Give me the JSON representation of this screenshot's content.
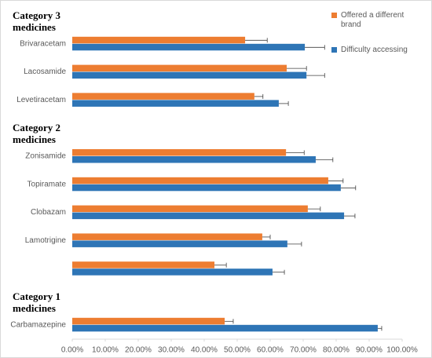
{
  "chart_data": {
    "type": "bar",
    "orientation": "horizontal",
    "categories": [
      "Category 3 medicines",
      "Brivaracetam",
      "Lacosamide",
      "Levetiracetam",
      "Category 2 medicines",
      "Zonisamide",
      "Topiramate",
      "Clobazam",
      "Lamotrigine",
      null,
      "Category 1 medicines",
      "Carbamazepine"
    ],
    "series": [
      {
        "name": "Offered a different brand",
        "color": "#ed7d31",
        "values": [
          null,
          52.4,
          65,
          55.2,
          null,
          64.8,
          77.6,
          71.4,
          57.6,
          43.1,
          null,
          46.2
        ],
        "errors": [
          null,
          6.7,
          6,
          2.6,
          null,
          5.5,
          4.5,
          3.8,
          2.4,
          3.6,
          null,
          2.6
        ]
      },
      {
        "name": "Difficulty accessing",
        "color": "#2e75b6",
        "values": [
          null,
          70.5,
          71,
          62.6,
          null,
          73.8,
          81.4,
          82.4,
          65.2,
          60.7,
          null,
          92.6
        ],
        "errors": [
          null,
          6,
          5.5,
          2.9,
          null,
          5.2,
          4.5,
          3.3,
          4.3,
          3.6,
          null,
          1.2
        ]
      }
    ],
    "xlim": [
      0,
      100
    ],
    "xticks": [
      {
        "value": 0,
        "label": "0.00%"
      },
      {
        "value": 10,
        "label": "10.00%"
      },
      {
        "value": 20,
        "label": "20.00%"
      },
      {
        "value": 30,
        "label": "30.00%"
      },
      {
        "value": 40,
        "label": "40.00%"
      },
      {
        "value": 50,
        "label": "50.00%"
      },
      {
        "value": 60,
        "label": "60.00%"
      },
      {
        "value": 70,
        "label": "70.00%"
      },
      {
        "value": 80,
        "label": "80.00%"
      },
      {
        "value": 90,
        "label": "90.00%"
      },
      {
        "value": 100,
        "label": "100.00%"
      }
    ],
    "legend": "top-right"
  }
}
